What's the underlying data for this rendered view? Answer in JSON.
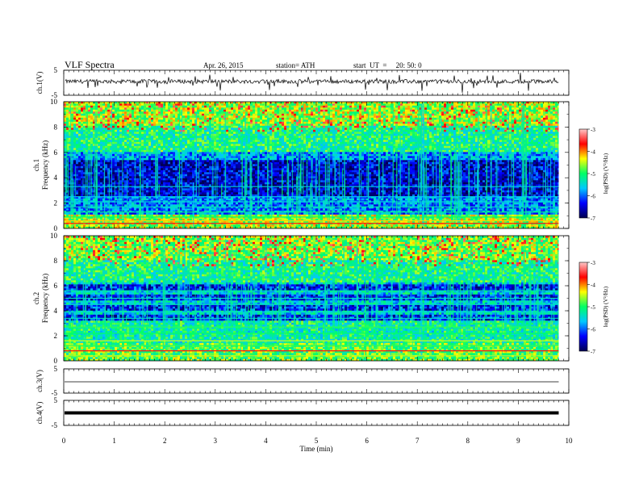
{
  "header": {
    "title": "VLF Spectra",
    "date": "Apr. 26, 2015",
    "station": "station= ATH",
    "start": "start  UT  =     20: 50: 0"
  },
  "colorscale": {
    "label": "log(PSD) (V²/Hz)",
    "ticks": [
      "-3",
      "-4",
      "-5",
      "-6",
      "-7"
    ],
    "stops": [
      "#ffc8c8",
      "#ff0000",
      "#ffff00",
      "#00ff66",
      "#00c8ff",
      "#0000ff",
      "#000050"
    ]
  },
  "chart_data": [
    {
      "type": "line",
      "name": "ch1",
      "ylabel": "ch.1(V)",
      "ylim": [
        -5,
        5
      ],
      "yticks": [
        "5",
        "-5"
      ],
      "baseline_value": 0.5
    },
    {
      "type": "heatmap",
      "name": "ch1-spectrogram",
      "ylabel_top": "ch.1",
      "ylabel": "Frequency (kHz)",
      "ylim": [
        0,
        10
      ],
      "yticks": [
        "10",
        "8",
        "6",
        "4",
        "2",
        "0"
      ],
      "zlim": [
        -7,
        -3
      ]
    },
    {
      "type": "heatmap",
      "name": "ch2-spectrogram",
      "ylabel_top": "ch.2",
      "ylabel": "Frequency (kHz)",
      "ylim": [
        0,
        10
      ],
      "yticks": [
        "10",
        "8",
        "6",
        "4",
        "2",
        "0"
      ],
      "zlim": [
        -7,
        -3
      ]
    },
    {
      "type": "line",
      "name": "ch3",
      "ylabel": "ch.3(V)",
      "ylim": [
        -5,
        5
      ],
      "yticks": [
        "5",
        "-5"
      ],
      "baseline_value": 0
    },
    {
      "type": "line",
      "name": "ch4",
      "ylabel": "ch.4(V)",
      "ylim": [
        -5,
        5
      ],
      "yticks": [
        "5",
        "-5"
      ],
      "baseline_value": 0
    }
  ],
  "xaxis": {
    "label": "Time  (min)",
    "xlim": [
      0,
      10
    ],
    "ticks": [
      "0",
      "1",
      "2",
      "3",
      "4",
      "5",
      "6",
      "7",
      "8",
      "9",
      "10"
    ],
    "data_end": 9.8
  }
}
